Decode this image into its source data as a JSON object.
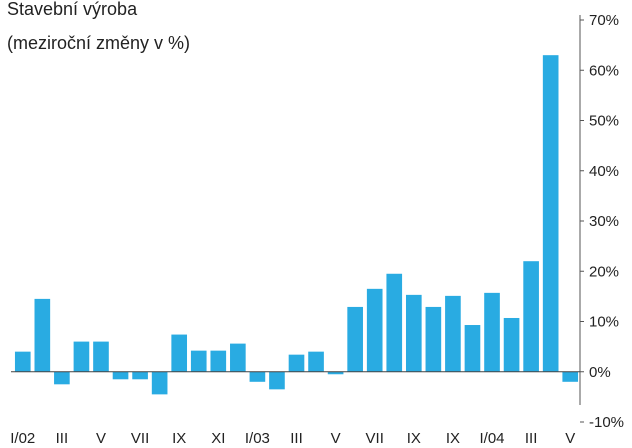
{
  "chart_data": {
    "type": "bar",
    "title": "Stavební výroba",
    "subtitle": "(meziroční změny v %)",
    "categories": [
      "I/02",
      null,
      "III",
      null,
      "V",
      null,
      "VII",
      null,
      "IX",
      null,
      "XI",
      null,
      "I/03",
      null,
      "III",
      null,
      "V",
      null,
      "VII",
      null,
      "IX",
      null,
      "IX",
      null,
      "I/04",
      null,
      "III",
      null,
      "V"
    ],
    "values": [
      4,
      14.5,
      -2.5,
      6,
      6,
      -1.5,
      -1.5,
      -4.5,
      7.4,
      4.2,
      4.2,
      5.6,
      -2,
      -3.5,
      3.4,
      4,
      -0.5,
      12.9,
      16.5,
      19.5,
      15.3,
      12.9,
      15.1,
      9.3,
      15.7,
      10.7,
      22,
      63,
      -2
    ],
    "color": "#29abe2",
    "ylim": [
      -10,
      70
    ],
    "yticks": [
      {
        "value": -10,
        "label": "-10%"
      },
      {
        "value": 0,
        "label": "0%"
      },
      {
        "value": 10,
        "label": "10%"
      },
      {
        "value": 20,
        "label": "20%"
      },
      {
        "value": 30,
        "label": "30%"
      },
      {
        "value": 40,
        "label": "40%"
      },
      {
        "value": 50,
        "label": "50%"
      },
      {
        "value": 60,
        "label": "60%"
      },
      {
        "value": 70,
        "label": "70%"
      }
    ]
  }
}
